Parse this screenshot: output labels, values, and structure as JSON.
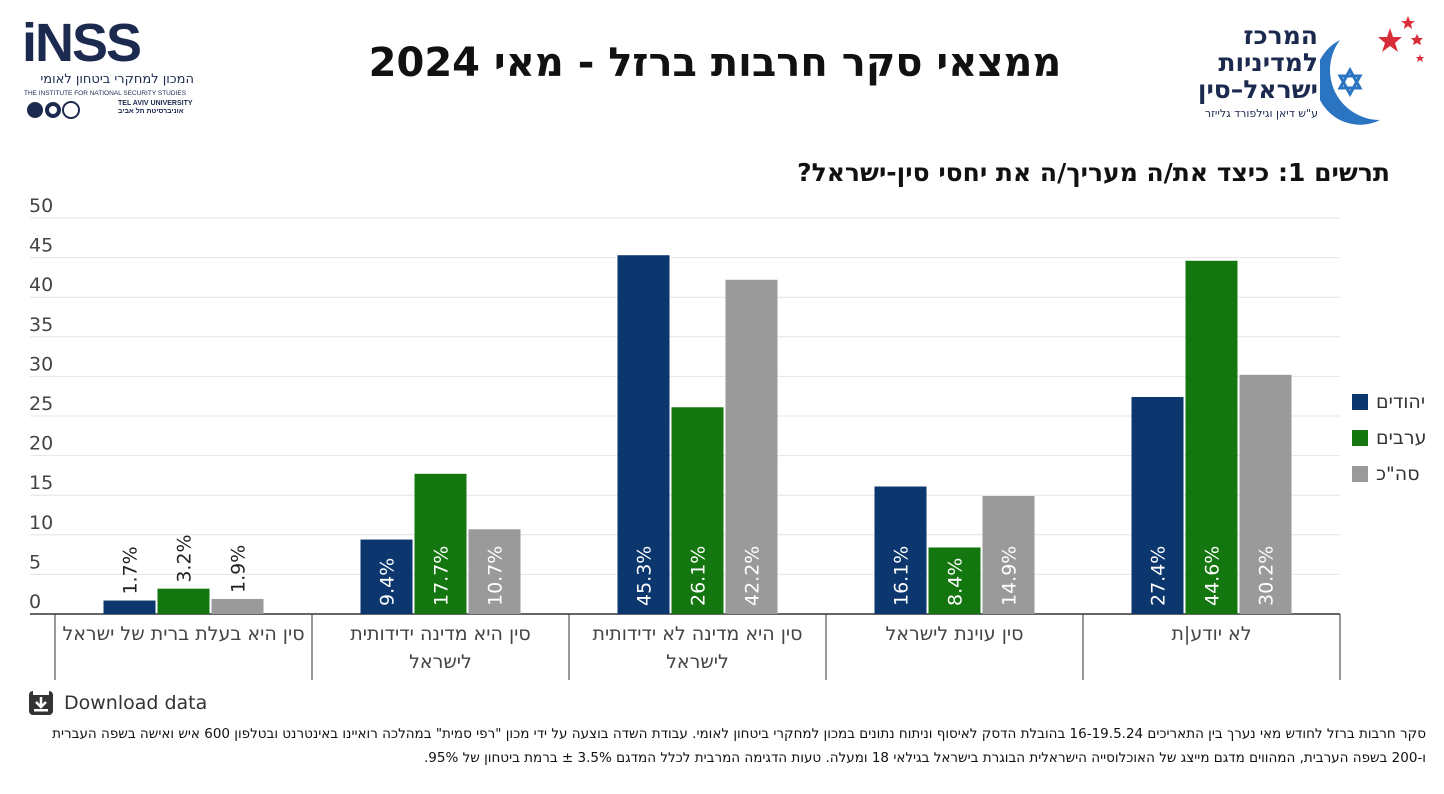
{
  "header": {
    "title": "ממצאי סקר חרבות ברזל - מאי 2024",
    "inss_logo": {
      "wordmark": "iNSS",
      "hebrew": "המכון למחקרי ביטחון לאומי",
      "english": "THE INSTITUTE FOR NATIONAL SECURITY STUDIES",
      "university_he": "אוניברסיטת תל אביב",
      "university_en": "TEL AVIV UNIVERSITY"
    },
    "center_logo": {
      "line1": "המרכז",
      "line2": "למדיניות",
      "line3": "ישראל–סין",
      "subline": "ע\"ש דיאן וגילפורד גלייזר"
    }
  },
  "chart_data": {
    "type": "bar",
    "title": "תרשים 1: כיצד את/ה מעריך/ה את יחסי סין-ישראל?",
    "categories": [
      [
        "סין היא בעלת ברית של ישראל"
      ],
      [
        "סין היא מדינה ידידותית",
        "לישראל"
      ],
      [
        "סין היא מדינה לא ידידותית",
        "לישראל"
      ],
      [
        "סין עוינת לישראל"
      ],
      [
        "לא יודע|ת"
      ]
    ],
    "series": [
      {
        "name": "יהודים",
        "color": "#0b366e",
        "values": [
          1.7,
          9.4,
          45.3,
          16.1,
          27.4
        ],
        "labels": [
          "1.7%",
          "9.4%",
          "45.3%",
          "16.1%",
          "27.4%"
        ]
      },
      {
        "name": "ערבים",
        "color": "#13760f",
        "values": [
          3.2,
          17.7,
          26.1,
          8.4,
          44.6
        ],
        "labels": [
          "3.2%",
          "17.7%",
          "26.1%",
          "8.4%",
          "44.6%"
        ]
      },
      {
        "name": "סה\"כ",
        "color": "#9a9a9a",
        "values": [
          1.9,
          10.7,
          42.2,
          14.9,
          30.2
        ],
        "labels": [
          "1.9%",
          "10.7%",
          "42.2%",
          "14.9%",
          "30.2%"
        ]
      }
    ],
    "yticks": [
      "0",
      "5",
      "10",
      "15",
      "20",
      "25",
      "30",
      "35",
      "40",
      "45",
      "50"
    ],
    "ylim": [
      0,
      50
    ],
    "grid": true,
    "legend_position": "right"
  },
  "download": {
    "label": "Download data",
    "icon": "download-icon"
  },
  "footnote": "סקר חרבות ברזל לחודש מאי נערך בין התאריכים 16-19.5.24 בהובלת הדסק לאיסוף וניתוח נתונים במכון למחקרי ביטחון לאומי. עבודת השדה בוצעה על ידי מכון \"רפי סמית\" במהלכה רואיינו באינטרנט ובטלפון 600 איש ואישה בשפה העברית ו-200 בשפה הערבית, המהווים מדגם מייצג של האוכלוסייה הישראלית הבוגרת בישראל בגילאי 18 ומעלה. טעות הדגימה המרבית לכלל המדגם 3.5% ± ברמת ביטחון של 95%."
}
